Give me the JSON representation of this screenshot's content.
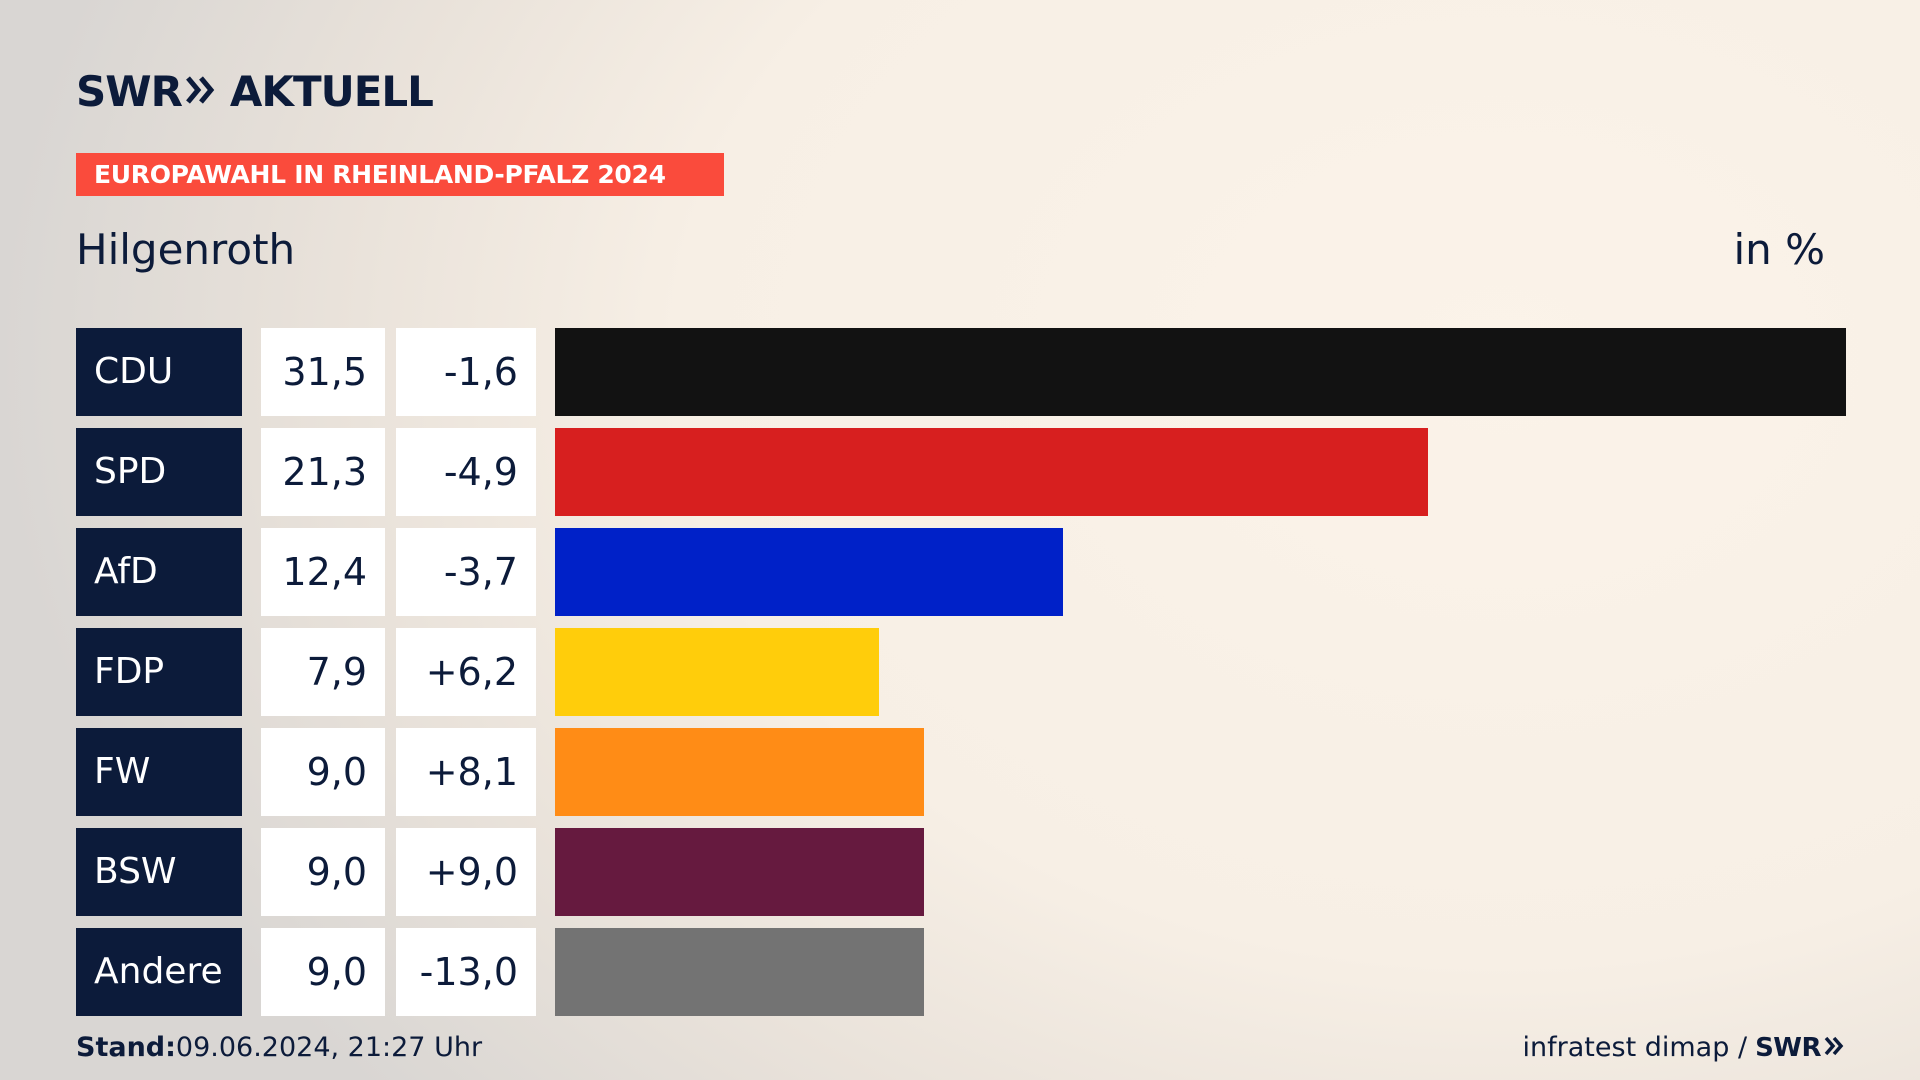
{
  "header": {
    "logo_left": "SWR",
    "logo_right": "AKTUELL",
    "banner": "EUROPAWAHL IN RHEINLAND-PFALZ 2024",
    "region": "Hilgenroth",
    "unit": "in %"
  },
  "footer": {
    "stand_label": "Stand:",
    "stand_value": "09.06.2024, 21:27 Uhr",
    "source": "infratest dimap /",
    "source_logo": "SWR"
  },
  "chart_data": {
    "type": "bar",
    "orientation": "horizontal",
    "categories": [
      "CDU",
      "SPD",
      "AfD",
      "FDP",
      "FW",
      "BSW",
      "Andere"
    ],
    "values": [
      31.5,
      21.3,
      12.4,
      7.9,
      9.0,
      9.0,
      9.0
    ],
    "value_labels": [
      "31,5",
      "21,3",
      "12,4",
      "7,9",
      "9,0",
      "9,0",
      "9,0"
    ],
    "diff_labels": [
      "-1,6",
      "-4,9",
      "-3,7",
      "+6,2",
      "+8,1",
      "+9,0",
      "-13,0"
    ],
    "colors": [
      "#121212",
      "#d71f1f",
      "#0021c8",
      "#ffcd0b",
      "#ff8c16",
      "#661a3f",
      "#737373"
    ],
    "xlim": [
      0,
      31.5
    ],
    "title": "Hilgenroth",
    "xlabel": "",
    "ylabel": "",
    "grid": false
  }
}
